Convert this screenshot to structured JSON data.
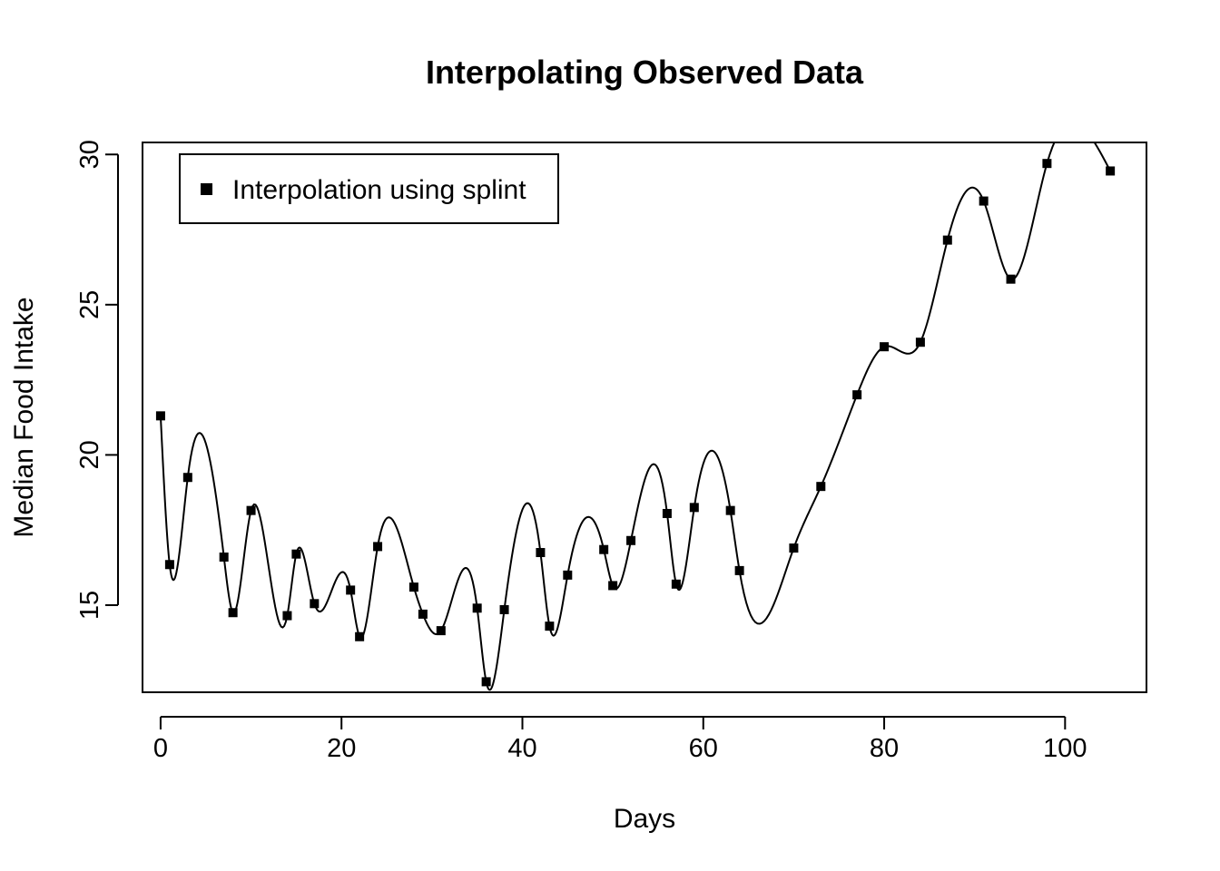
{
  "chart_data": {
    "type": "line",
    "title": "Interpolating Observed Data",
    "xlabel": "Days",
    "ylabel": "Median Food Intake",
    "xlim": [
      -2,
      109
    ],
    "ylim": [
      12.1,
      30.4
    ],
    "x_ticks": [
      0,
      20,
      40,
      60,
      80,
      100
    ],
    "y_ticks": [
      15,
      20,
      25,
      30
    ],
    "grid": false,
    "legend_position": "top-left",
    "series": [
      {
        "name": "Interpolation using splint",
        "marker": "square",
        "color": "#000000",
        "x": [
          0,
          1,
          3,
          7,
          8,
          10,
          14,
          15,
          17,
          21,
          22,
          24,
          28,
          29,
          31,
          35,
          36,
          38,
          42,
          43,
          45,
          49,
          50,
          52,
          56,
          57,
          59,
          63,
          64,
          70,
          73,
          77,
          80,
          84,
          87,
          91,
          94,
          98,
          105
        ],
        "y": [
          21.3,
          16.35,
          19.25,
          16.6,
          14.75,
          18.15,
          14.65,
          16.7,
          15.05,
          15.5,
          13.95,
          16.95,
          15.6,
          14.7,
          14.15,
          14.9,
          12.45,
          14.85,
          16.75,
          14.3,
          16.0,
          16.85,
          15.65,
          17.15,
          18.05,
          15.7,
          18.25,
          18.15,
          16.15,
          16.9,
          18.95,
          22.0,
          23.6,
          23.75,
          27.15,
          28.45,
          25.85,
          29.7,
          29.45
        ]
      }
    ]
  }
}
